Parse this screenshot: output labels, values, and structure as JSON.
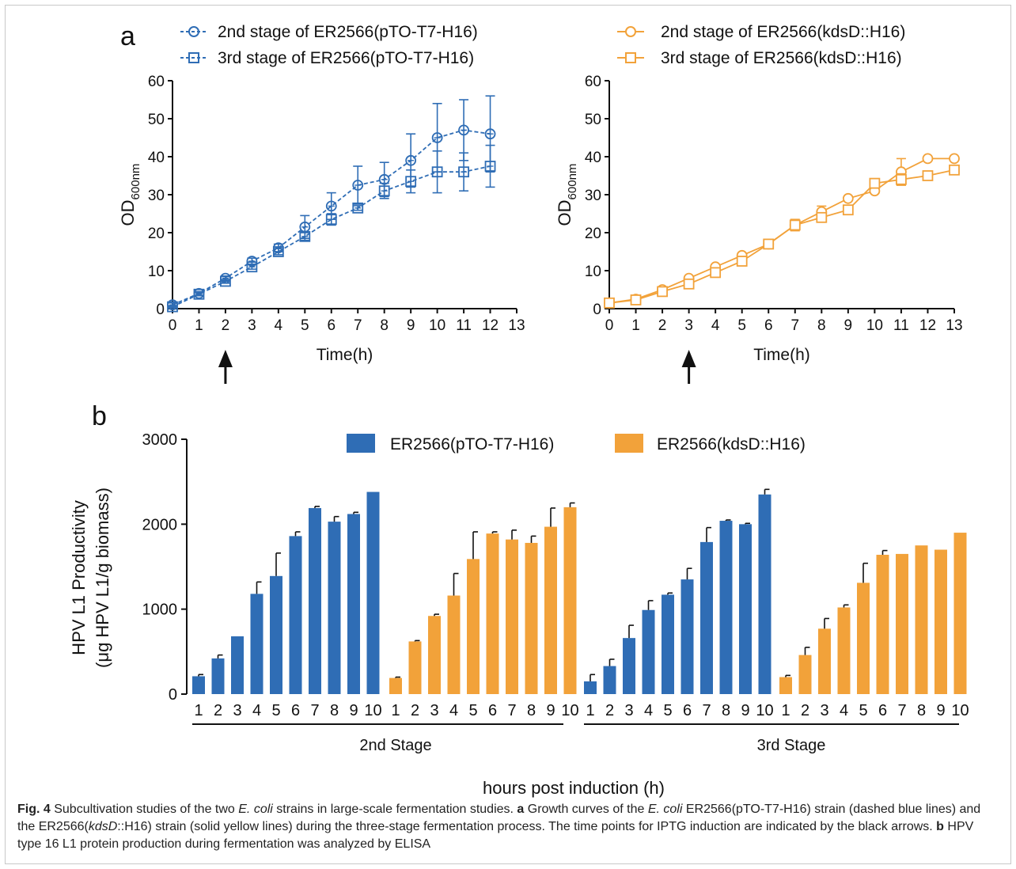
{
  "caption": {
    "fig_label": "Fig. 4",
    "part1": "  Subcultivation studies of the two ",
    "ecoli": "E. coli",
    "part2": " strains in large-scale fermentation studies. ",
    "a_label": "a",
    "part3": " Growth curves of the ",
    "ecoli2": "E. coli",
    "part4": " ER2566(pTO-T7-H16) strain (dashed blue lines) and the ER2566(",
    "kdsd": "kdsD",
    "part5": "::H16) strain (solid yellow lines) during the three-stage fermentation process. The time points for IPTG induction are indicated by the black arrows. ",
    "b_label": "b",
    "part6": " HPV type 16 L1 protein production during fermentation was analyzed by ELISA"
  },
  "colors": {
    "blue": "#2f6db5",
    "orange": "#f2a23a",
    "black": "#111111"
  },
  "chart_data": [
    {
      "type": "line",
      "panel_label": "a",
      "xlabel": "Time(h)",
      "ylabel": "OD",
      "ylabel_sub": "600nm",
      "xlim": [
        0,
        13
      ],
      "ylim": [
        0,
        60
      ],
      "xticks": [
        0,
        1,
        2,
        3,
        4,
        5,
        6,
        7,
        8,
        9,
        10,
        11,
        12,
        13
      ],
      "yticks": [
        0,
        10,
        20,
        30,
        40,
        50,
        60
      ],
      "line_style": "dashed",
      "color": "#2f6db5",
      "induction_arrow_x": 2,
      "series": [
        {
          "name": "2nd stage of ER2566(pTO-T7-H16)",
          "marker": "circle",
          "x": [
            0,
            1,
            2,
            3,
            4,
            5,
            6,
            7,
            8,
            9,
            10,
            11,
            12
          ],
          "y": [
            1,
            4,
            8,
            12.5,
            16,
            21.5,
            27,
            32.5,
            34,
            39,
            45,
            47,
            46
          ],
          "err": [
            0.5,
            0.5,
            0.6,
            0.8,
            1,
            3,
            3.5,
            5,
            4.5,
            7,
            9,
            8,
            10
          ]
        },
        {
          "name": "3rd stage of ER2566(pTO-T7-H16)",
          "marker": "square",
          "x": [
            0,
            1,
            2,
            3,
            4,
            5,
            6,
            7,
            8,
            9,
            10,
            11,
            12
          ],
          "y": [
            0.5,
            3.8,
            7.2,
            11,
            15,
            19,
            23.5,
            26.5,
            31,
            33.5,
            36,
            36,
            37.5
          ],
          "err": [
            0.3,
            0.4,
            0.5,
            0.6,
            0.8,
            1,
            1.5,
            0.6,
            2,
            3,
            5.5,
            5,
            5.5
          ]
        }
      ]
    },
    {
      "type": "line",
      "xlabel": "Time(h)",
      "ylabel": "OD",
      "ylabel_sub": "600nm",
      "xlim": [
        0,
        13
      ],
      "ylim": [
        0,
        60
      ],
      "xticks": [
        0,
        1,
        2,
        3,
        4,
        5,
        6,
        7,
        8,
        9,
        10,
        11,
        12,
        13
      ],
      "yticks": [
        0,
        10,
        20,
        30,
        40,
        50,
        60
      ],
      "line_style": "solid",
      "color": "#f2a23a",
      "induction_arrow_x": 3,
      "series": [
        {
          "name": "2nd stage of ER2566(kdsD::H16)",
          "marker": "circle",
          "x": [
            0,
            1,
            2,
            3,
            4,
            5,
            6,
            7,
            8,
            9,
            10,
            11,
            12,
            13
          ],
          "y": [
            1.5,
            2.5,
            5,
            8,
            11,
            14,
            17,
            22,
            25.5,
            29,
            31,
            36,
            39.5,
            39.5
          ],
          "err": [
            0.3,
            0.3,
            0.4,
            0.5,
            0.5,
            0.6,
            0.6,
            1.5,
            1.5,
            0.5,
            0.6,
            3.5,
            0.4,
            0.4
          ]
        },
        {
          "name": "3rd stage of ER2566(kdsD::H16)",
          "marker": "square",
          "x": [
            0,
            1,
            2,
            3,
            4,
            5,
            6,
            7,
            8,
            9,
            10,
            11,
            12,
            13
          ],
          "y": [
            1.5,
            2.3,
            4.5,
            6.5,
            9.5,
            12.5,
            17,
            22,
            24,
            26,
            33,
            34,
            35,
            36.5
          ],
          "err": [
            0.3,
            0.3,
            0.4,
            0.5,
            0.5,
            0.6,
            0.6,
            1,
            1,
            0.6,
            0.6,
            1.5,
            0.5,
            0.5
          ]
        }
      ]
    },
    {
      "type": "bar",
      "panel_label": "b",
      "ylabel_line1": "HPV L1 Productivity",
      "ylabel_line2": "(μg HPV L1/g biomass)",
      "xlabel": "hours post induction (h)",
      "ylim": [
        0,
        3000
      ],
      "yticks": [
        0,
        1000,
        2000,
        3000
      ],
      "categories": [
        "1",
        "2",
        "3",
        "4",
        "5",
        "6",
        "7",
        "8",
        "9",
        "10"
      ],
      "groups": [
        "2nd Stage",
        "3rd Stage"
      ],
      "series": [
        {
          "name": "ER2566(pTO-T7-H16)",
          "color": "#2f6db5",
          "stage": "2nd Stage",
          "values": [
            210,
            420,
            680,
            1180,
            1390,
            1860,
            2190,
            2030,
            2120,
            2380
          ],
          "err": [
            20,
            40,
            0,
            140,
            270,
            50,
            20,
            60,
            20,
            0
          ]
        },
        {
          "name": "ER2566(kdsD::H16)",
          "color": "#f2a23a",
          "stage": "2nd Stage",
          "values": [
            190,
            620,
            920,
            1160,
            1590,
            1890,
            1820,
            1780,
            1970,
            2200
          ],
          "err": [
            10,
            10,
            20,
            260,
            320,
            20,
            110,
            80,
            220,
            50
          ]
        },
        {
          "name": "ER2566(pTO-T7-H16)",
          "color": "#2f6db5",
          "stage": "3rd Stage",
          "values": [
            150,
            330,
            660,
            990,
            1170,
            1350,
            1790,
            2040,
            2000,
            2350
          ],
          "err": [
            80,
            80,
            150,
            110,
            20,
            130,
            170,
            10,
            10,
            60
          ]
        },
        {
          "name": "ER2566(kdsD::H16)",
          "color": "#f2a23a",
          "stage": "3rd Stage",
          "values": [
            200,
            460,
            770,
            1020,
            1310,
            1640,
            1650,
            1750,
            1700,
            1900
          ],
          "err": [
            20,
            90,
            120,
            30,
            230,
            50,
            0,
            0,
            0,
            0
          ]
        }
      ]
    }
  ]
}
